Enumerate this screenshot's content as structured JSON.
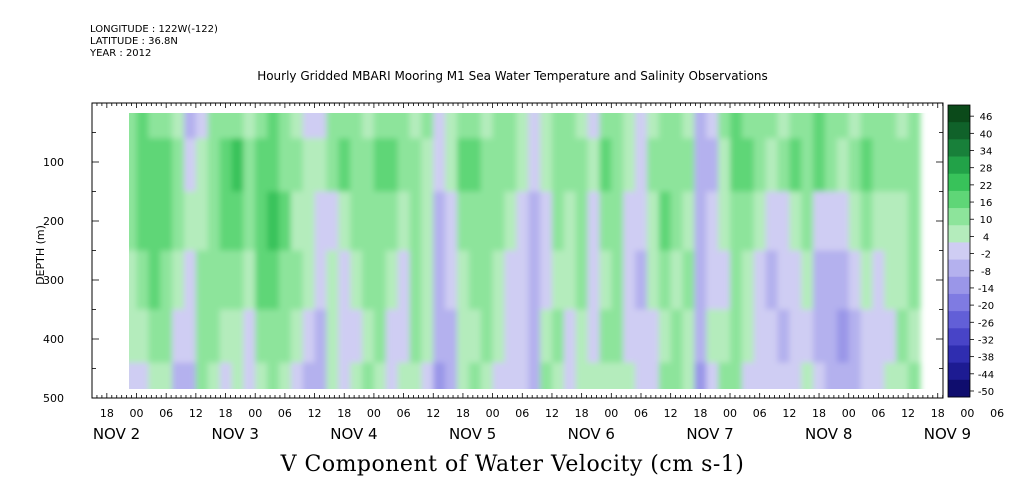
{
  "header": {
    "longitude": "LONGITUDE : 122W(-122)",
    "latitude": "LATITUDE : 36.8N",
    "year": "YEAR : 2012"
  },
  "chart_data": {
    "type": "heatmap",
    "title": "Hourly Gridded MBARI Mooring M1 Sea Water Temperature and Salinity Observations",
    "xlabel": "V Component of Water Velocity (cm s-1)",
    "ylabel": "DEPTH (m)",
    "ylim": [
      500,
      0
    ],
    "y_ticks": [
      100,
      200,
      300,
      400,
      500
    ],
    "x_hour_labels": [
      "18",
      "00",
      "06",
      "12",
      "18",
      "00",
      "06",
      "12",
      "18",
      "00",
      "06",
      "12",
      "18",
      "00",
      "06",
      "12",
      "18",
      "00",
      "06",
      "12",
      "18",
      "00",
      "06",
      "12",
      "18",
      "00",
      "06",
      "12",
      "18",
      "00",
      "06",
      "12",
      "18",
      "00",
      "06",
      "12"
    ],
    "x_day_labels": [
      "NOV  2",
      "NOV  3",
      "NOV  4",
      "NOV  5",
      "NOV  6",
      "NOV  7",
      "NOV  8",
      "NOV  9"
    ],
    "colorbar": {
      "levels": [
        "46",
        "40",
        "34",
        "28",
        "22",
        "16",
        "10",
        "4",
        "-2",
        "-8",
        "-14",
        "-20",
        "-26",
        "-32",
        "-38",
        "-44",
        "-50"
      ],
      "colors": [
        "#0b4a1a",
        "#10622a",
        "#18803a",
        "#22a248",
        "#38c25a",
        "#5fd677",
        "#8de49b",
        "#b4ecbc",
        "#cfcdf3",
        "#b4b1ee",
        "#9a96e8",
        "#7f7be2",
        "#625fd7",
        "#4844c7",
        "#2f2db0",
        "#1d1b92",
        "#0f0d6e"
      ]
    },
    "profile_depths": [
      20,
      100,
      200,
      300,
      400,
      480
    ],
    "columns": [
      {
        "day": 1.85,
        "v": [
          6,
          5,
          4,
          3,
          2,
          -2
        ]
      },
      {
        "day": 1.95,
        "v": [
          8,
          7,
          6,
          2,
          -2,
          -6
        ]
      },
      {
        "day": 2.05,
        "v": [
          10,
          12,
          10,
          6,
          2,
          -4
        ]
      },
      {
        "day": 2.15,
        "v": [
          8,
          14,
          14,
          10,
          4,
          0
        ]
      },
      {
        "day": 2.25,
        "v": [
          6,
          10,
          10,
          8,
          6,
          2
        ]
      },
      {
        "day": 2.35,
        "v": [
          2,
          4,
          4,
          2,
          -6,
          -10
        ]
      },
      {
        "day": 2.45,
        "v": [
          -10,
          -6,
          -2,
          -4,
          -8,
          -10
        ]
      },
      {
        "day": 2.55,
        "v": [
          -6,
          2,
          2,
          4,
          6,
          4
        ]
      },
      {
        "day": 2.65,
        "v": [
          4,
          8,
          6,
          8,
          4,
          -2
        ]
      },
      {
        "day": 2.75,
        "v": [
          6,
          12,
          10,
          4,
          -2,
          -4
        ]
      },
      {
        "day": 2.85,
        "v": [
          4,
          16,
          12,
          6,
          2,
          -2
        ]
      },
      {
        "day": 2.95,
        "v": [
          2,
          6,
          4,
          2,
          -4,
          -6
        ]
      },
      {
        "day": 3.05,
        "v": [
          8,
          10,
          12,
          10,
          6,
          2
        ]
      },
      {
        "day": 3.15,
        "v": [
          10,
          14,
          16,
          12,
          8,
          4
        ]
      },
      {
        "day": 3.25,
        "v": [
          6,
          8,
          10,
          8,
          4,
          2
        ]
      },
      {
        "day": 3.35,
        "v": [
          2,
          4,
          2,
          4,
          2,
          -4
        ]
      },
      {
        "day": 3.45,
        "v": [
          -8,
          2,
          2,
          -2,
          -8,
          -10
        ]
      },
      {
        "day": 3.55,
        "v": [
          -4,
          0,
          -6,
          -8,
          -12,
          -10
        ]
      },
      {
        "day": 3.65,
        "v": [
          6,
          4,
          -4,
          -2,
          2,
          0
        ]
      },
      {
        "day": 3.75,
        "v": [
          8,
          12,
          2,
          -4,
          -8,
          -6
        ]
      },
      {
        "day": 3.85,
        "v": [
          4,
          8,
          4,
          2,
          -4,
          -2
        ]
      },
      {
        "day": 3.95,
        "v": [
          2,
          6,
          8,
          4,
          2,
          4
        ]
      },
      {
        "day": 4.05,
        "v": [
          6,
          10,
          8,
          6,
          4,
          2
        ]
      },
      {
        "day": 4.15,
        "v": [
          8,
          12,
          6,
          2,
          -4,
          -6
        ]
      },
      {
        "day": 4.25,
        "v": [
          4,
          6,
          2,
          -4,
          -6,
          -2
        ]
      },
      {
        "day": 4.35,
        "v": [
          2,
          4,
          4,
          6,
          4,
          2
        ]
      },
      {
        "day": 4.45,
        "v": [
          4,
          2,
          2,
          2,
          -2,
          -4
        ]
      },
      {
        "day": 4.55,
        "v": [
          -4,
          -8,
          -10,
          -12,
          -14,
          -16
        ]
      },
      {
        "day": 4.65,
        "v": [
          -2,
          2,
          -4,
          -8,
          -12,
          -10
        ]
      },
      {
        "day": 4.75,
        "v": [
          8,
          10,
          4,
          0,
          -2,
          2
        ]
      },
      {
        "day": 4.85,
        "v": [
          6,
          10,
          8,
          4,
          2,
          4
        ]
      },
      {
        "day": 4.95,
        "v": [
          2,
          8,
          6,
          8,
          4,
          2
        ]
      },
      {
        "day": 5.05,
        "v": [
          4,
          6,
          4,
          2,
          -2,
          -4
        ]
      },
      {
        "day": 5.15,
        "v": [
          6,
          4,
          2,
          -4,
          -8,
          -6
        ]
      },
      {
        "day": 5.25,
        "v": [
          2,
          -2,
          -6,
          -8,
          -6,
          -4
        ]
      },
      {
        "day": 5.35,
        "v": [
          -6,
          -8,
          -10,
          -12,
          -14,
          -10
        ]
      },
      {
        "day": 5.45,
        "v": [
          2,
          -2,
          -6,
          -4,
          2,
          4
        ]
      },
      {
        "day": 5.55,
        "v": [
          6,
          8,
          4,
          2,
          4,
          2
        ]
      },
      {
        "day": 5.65,
        "v": [
          4,
          6,
          2,
          -2,
          -4,
          -6
        ]
      },
      {
        "day": 5.75,
        "v": [
          2,
          4,
          6,
          4,
          2,
          -2
        ]
      },
      {
        "day": 5.85,
        "v": [
          -4,
          -2,
          -6,
          -8,
          -4,
          -2
        ]
      },
      {
        "day": 5.95,
        "v": [
          6,
          10,
          4,
          2,
          4,
          2
        ]
      },
      {
        "day": 6.05,
        "v": [
          4,
          6,
          8,
          6,
          4,
          2
        ]
      },
      {
        "day": 6.15,
        "v": [
          -2,
          2,
          -4,
          -6,
          -4,
          -2
        ]
      },
      {
        "day": 6.25,
        "v": [
          -8,
          -6,
          -8,
          -10,
          -6,
          -4
        ]
      },
      {
        "day": 6.35,
        "v": [
          2,
          4,
          2,
          -2,
          -6,
          -8
        ]
      },
      {
        "day": 6.45,
        "v": [
          6,
          8,
          10,
          6,
          2,
          4
        ]
      },
      {
        "day": 6.55,
        "v": [
          4,
          6,
          4,
          2,
          4,
          6
        ]
      },
      {
        "day": 6.65,
        "v": [
          2,
          4,
          2,
          4,
          2,
          -2
        ]
      },
      {
        "day": 6.75,
        "v": [
          -10,
          -12,
          -14,
          -12,
          -14,
          -16
        ]
      },
      {
        "day": 6.85,
        "v": [
          -6,
          -10,
          -8,
          -4,
          -2,
          -4
        ]
      },
      {
        "day": 6.95,
        "v": [
          4,
          2,
          -2,
          -4,
          2,
          4
        ]
      },
      {
        "day": 7.05,
        "v": [
          10,
          14,
          8,
          4,
          6,
          4
        ]
      },
      {
        "day": 7.15,
        "v": [
          8,
          12,
          6,
          2,
          -2,
          -4
        ]
      },
      {
        "day": 7.25,
        "v": [
          6,
          8,
          -2,
          -6,
          -8,
          -6
        ]
      },
      {
        "day": 7.35,
        "v": [
          4,
          2,
          -6,
          -10,
          -8,
          -4
        ]
      },
      {
        "day": 7.45,
        "v": [
          2,
          4,
          -4,
          -8,
          -10,
          -8
        ]
      },
      {
        "day": 7.55,
        "v": [
          8,
          10,
          2,
          -4,
          -6,
          -4
        ]
      },
      {
        "day": 7.65,
        "v": [
          6,
          8,
          4,
          -2,
          -4,
          -2
        ]
      },
      {
        "day": 7.75,
        "v": [
          10,
          12,
          -4,
          -10,
          -12,
          -8
        ]
      },
      {
        "day": 7.85,
        "v": [
          6,
          8,
          -8,
          -14,
          -12,
          -10
        ]
      },
      {
        "day": 7.95,
        "v": [
          4,
          2,
          -6,
          -12,
          -16,
          -10
        ]
      },
      {
        "day": 8.05,
        "v": [
          2,
          4,
          -2,
          -8,
          -12,
          -14
        ]
      },
      {
        "day": 8.15,
        "v": [
          8,
          10,
          4,
          -2,
          -6,
          -8
        ]
      },
      {
        "day": 8.25,
        "v": [
          6,
          8,
          2,
          -4,
          -8,
          -6
        ]
      },
      {
        "day": 8.35,
        "v": [
          4,
          6,
          2,
          -2,
          -4,
          -2
        ]
      },
      {
        "day": 8.45,
        "v": [
          2,
          4,
          2,
          2,
          4,
          2
        ]
      },
      {
        "day": 8.55,
        "v": [
          6,
          8,
          6,
          4,
          2,
          4
        ]
      }
    ]
  }
}
